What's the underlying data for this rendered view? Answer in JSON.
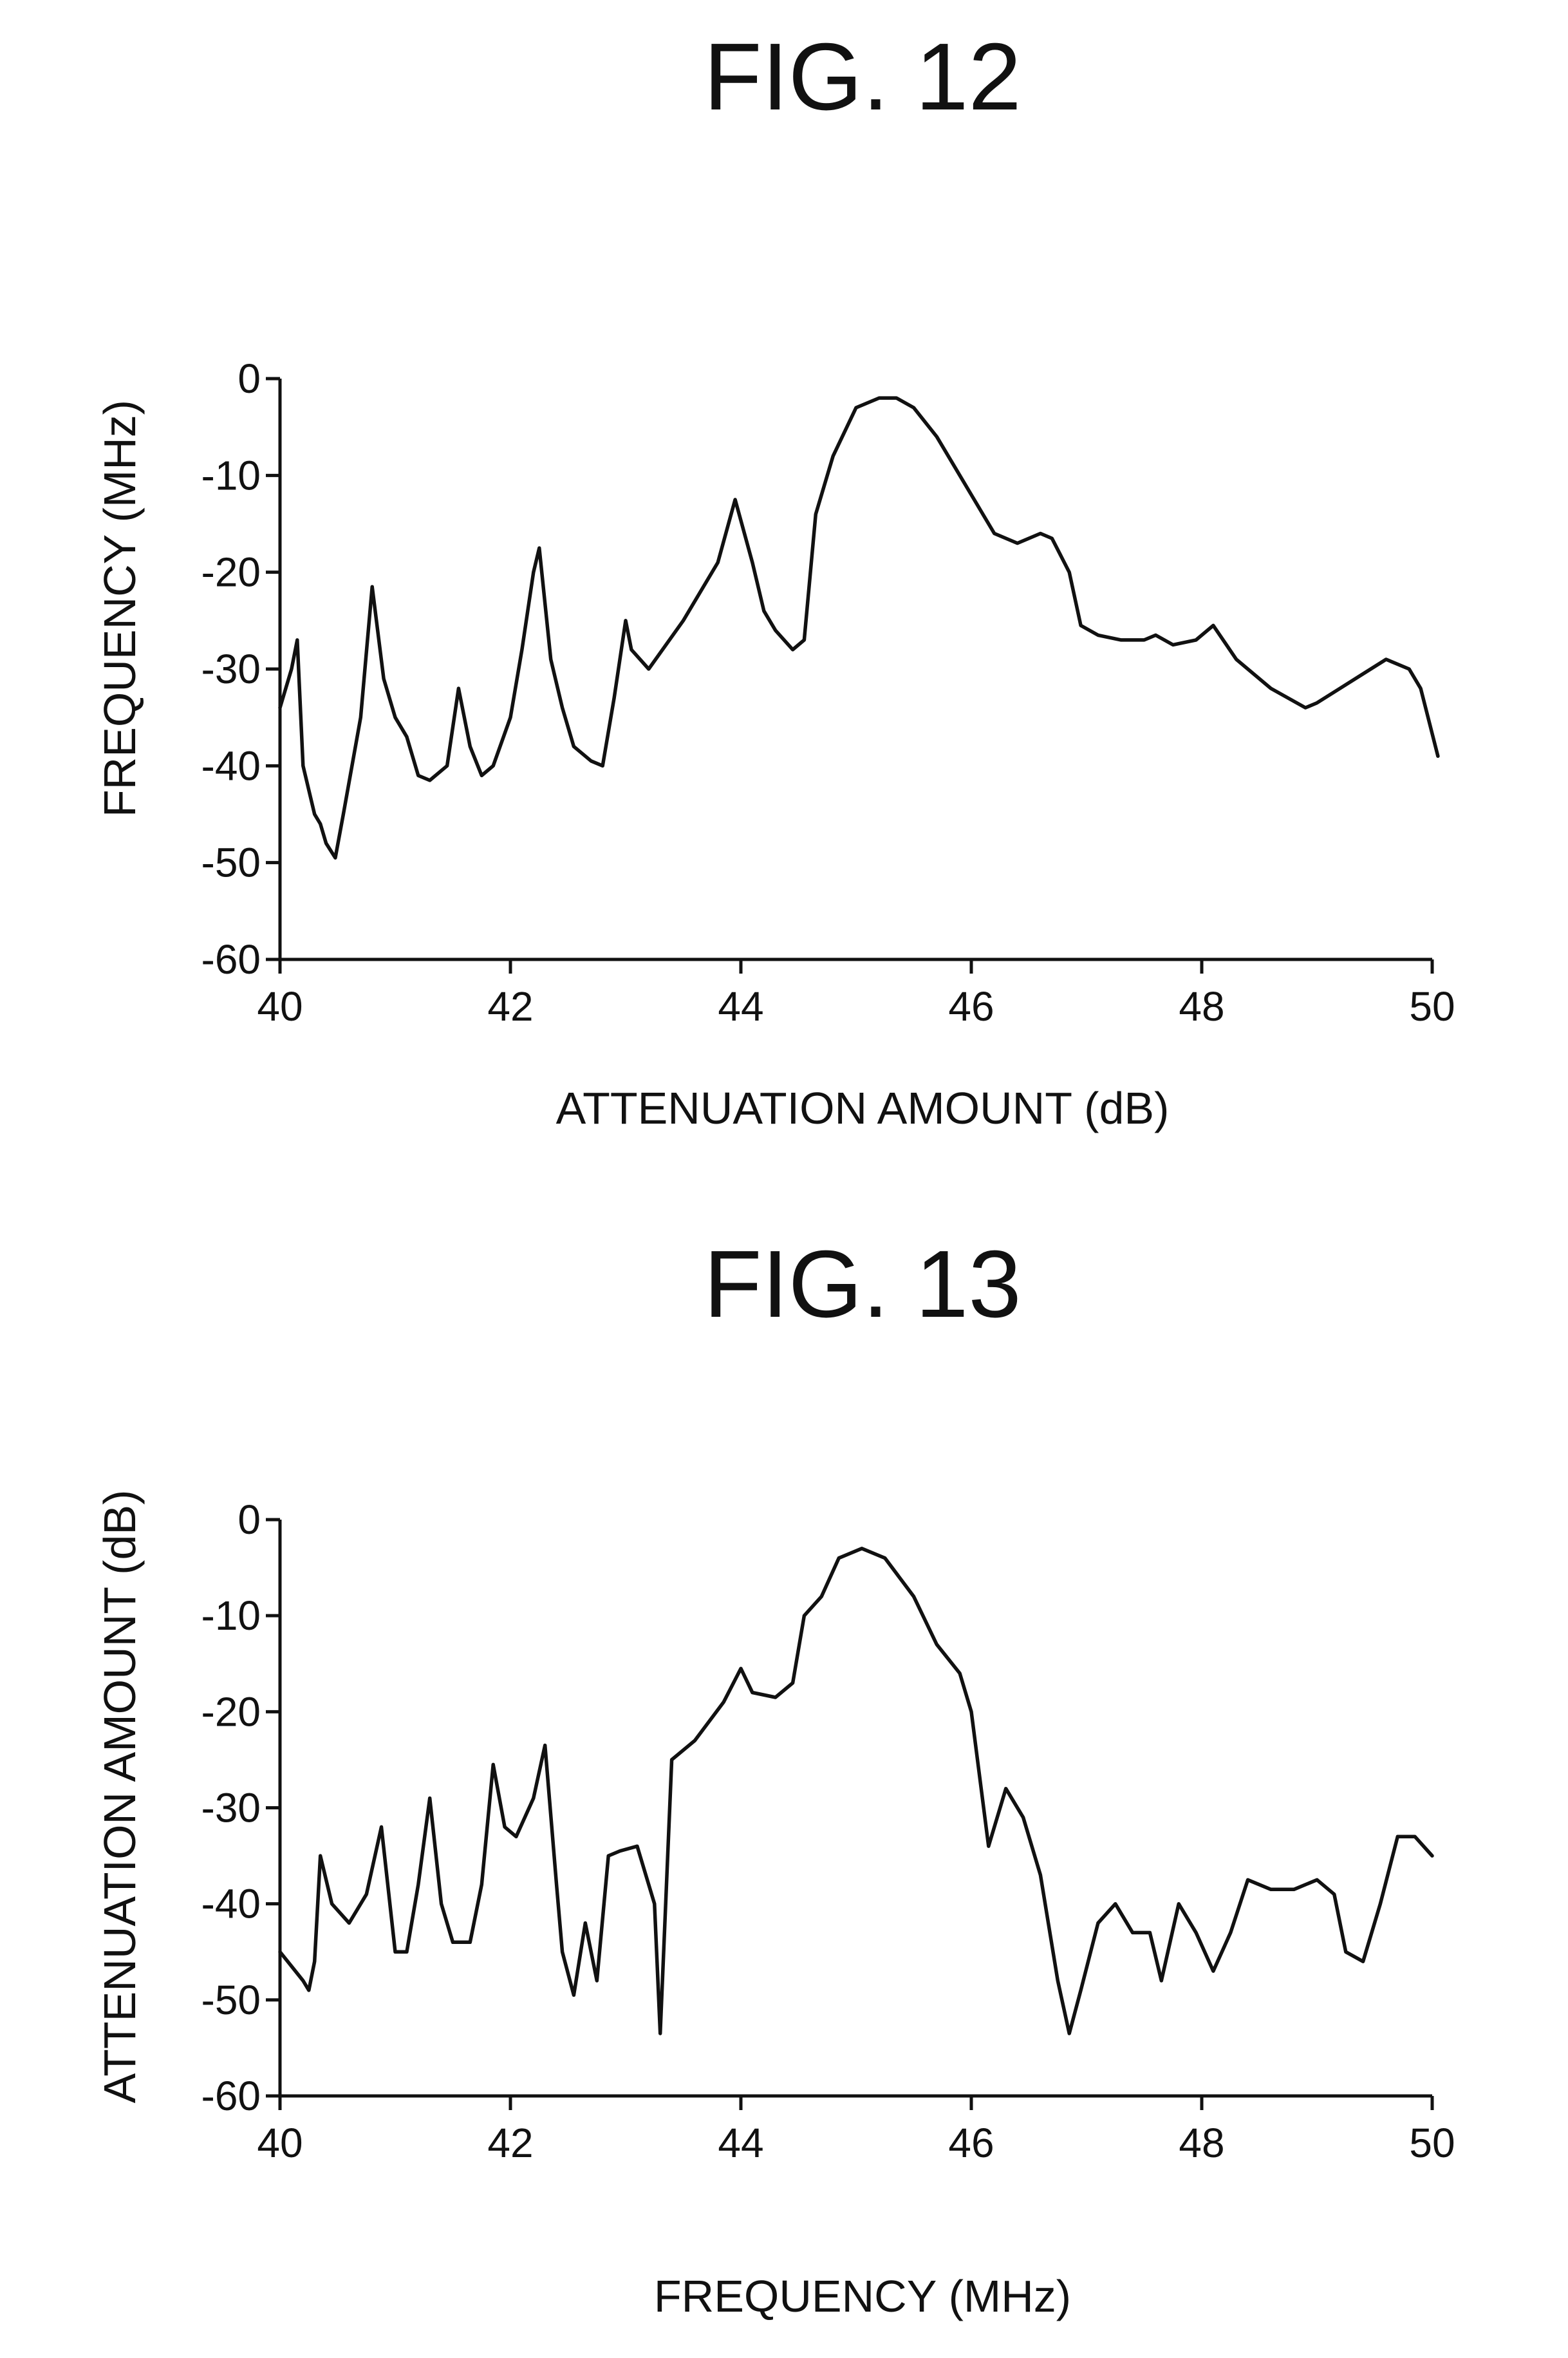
{
  "chart_data": [
    {
      "type": "line",
      "title": "FIG. 12",
      "xlabel": "ATTENUATION AMOUNT (dB)",
      "ylabel": "FREQUENCY (MHz)",
      "xlim": [
        40,
        50
      ],
      "ylim": [
        -60,
        0
      ],
      "xticks": [
        40,
        42,
        44,
        46,
        48,
        50
      ],
      "yticks": [
        0,
        -10,
        -20,
        -30,
        -40,
        -50,
        -60
      ],
      "grid": false,
      "series": [
        {
          "x": [
            40.0,
            40.1,
            40.15,
            40.2,
            40.3,
            40.35,
            40.4,
            40.48,
            40.55,
            40.7,
            40.8,
            40.9,
            41.0,
            41.1,
            41.2,
            41.3,
            41.45,
            41.55,
            41.65,
            41.75,
            41.85,
            42.0,
            42.1,
            42.2,
            42.25,
            42.35,
            42.45,
            42.55,
            42.7,
            42.8,
            42.9,
            43.0,
            43.05,
            43.2,
            43.5,
            43.8,
            43.95,
            44.1,
            44.2,
            44.3,
            44.45,
            44.55,
            44.65,
            44.8,
            45.0,
            45.2,
            45.35,
            45.5,
            45.7,
            45.9,
            46.0,
            46.2,
            46.4,
            46.6,
            46.7,
            46.85,
            46.95,
            47.1,
            47.3,
            47.5,
            47.6,
            47.75,
            47.95,
            48.1,
            48.3,
            48.6,
            48.9,
            49.0,
            49.2,
            49.4,
            49.6,
            49.8,
            49.9,
            50.05
          ],
          "values": [
            -34,
            -30,
            -27,
            -40,
            -45,
            -46,
            -48,
            -49.5,
            -45,
            -35,
            -21.5,
            -31,
            -35,
            -37,
            -41,
            -41.5,
            -40,
            -32,
            -38,
            -41,
            -40,
            -35,
            -28,
            -20,
            -17.5,
            -29,
            -34,
            -38,
            -39.5,
            -40,
            -33,
            -25,
            -28,
            -30,
            -25,
            -19,
            -12.5,
            -19,
            -24,
            -26,
            -28,
            -27,
            -14,
            -8,
            -3,
            -2,
            -2,
            -3,
            -6,
            -10,
            -12,
            -16,
            -17,
            -16,
            -16.5,
            -20,
            -25.5,
            -26.5,
            -27,
            -27,
            -26.5,
            -27.5,
            -27,
            -25.5,
            -29,
            -32,
            -34,
            -33.5,
            -32,
            -30.5,
            -29,
            -30,
            -32,
            -39
          ]
        }
      ]
    },
    {
      "type": "line",
      "title": "FIG. 13",
      "xlabel": "FREQUENCY (MHz)",
      "ylabel": "ATTENUATION AMOUNT (dB)",
      "xlim": [
        40,
        50
      ],
      "ylim": [
        -60,
        0
      ],
      "xticks": [
        40,
        42,
        44,
        46,
        48,
        50
      ],
      "yticks": [
        0,
        -10,
        -20,
        -30,
        -40,
        -50,
        -60
      ],
      "grid": false,
      "series": [
        {
          "x": [
            40.0,
            40.1,
            40.2,
            40.25,
            40.3,
            40.35,
            40.45,
            40.6,
            40.75,
            40.88,
            41.0,
            41.1,
            41.2,
            41.3,
            41.4,
            41.5,
            41.65,
            41.75,
            41.85,
            41.95,
            42.05,
            42.2,
            42.3,
            42.4,
            42.45,
            42.55,
            42.65,
            42.75,
            42.85,
            42.95,
            43.1,
            43.25,
            43.3,
            43.4,
            43.6,
            43.85,
            44.0,
            44.1,
            44.3,
            44.45,
            44.55,
            44.7,
            44.85,
            45.05,
            45.25,
            45.5,
            45.7,
            45.9,
            46.0,
            46.15,
            46.3,
            46.45,
            46.6,
            46.75,
            46.85,
            46.95,
            47.1,
            47.25,
            47.4,
            47.55,
            47.65,
            47.8,
            47.95,
            48.1,
            48.25,
            48.4,
            48.6,
            48.8,
            49.0,
            49.15,
            49.25,
            49.4,
            49.55,
            49.7,
            49.85,
            50.0
          ],
          "values": [
            -45,
            -46.5,
            -48,
            -49,
            -46,
            -35,
            -40,
            -42,
            -39,
            -32,
            -45,
            -45,
            -38,
            -29,
            -40,
            -44,
            -44,
            -38,
            -25.5,
            -32,
            -33,
            -29,
            -23.5,
            -38,
            -45,
            -49.5,
            -42,
            -48,
            -35,
            -34.5,
            -34,
            -40,
            -53.5,
            -25,
            -23,
            -19,
            -15.5,
            -18,
            -18.5,
            -17,
            -10,
            -8,
            -4,
            -3,
            -4,
            -8,
            -13,
            -16,
            -20,
            -34,
            -28,
            -31,
            -37,
            -48,
            -53.5,
            -49,
            -42,
            -40,
            -43,
            -43,
            -48,
            -40,
            -43,
            -47,
            -43,
            -37.5,
            -38.5,
            -38.5,
            -37.5,
            -39,
            -45,
            -46,
            -40,
            -33,
            -33,
            -35
          ]
        }
      ]
    }
  ]
}
